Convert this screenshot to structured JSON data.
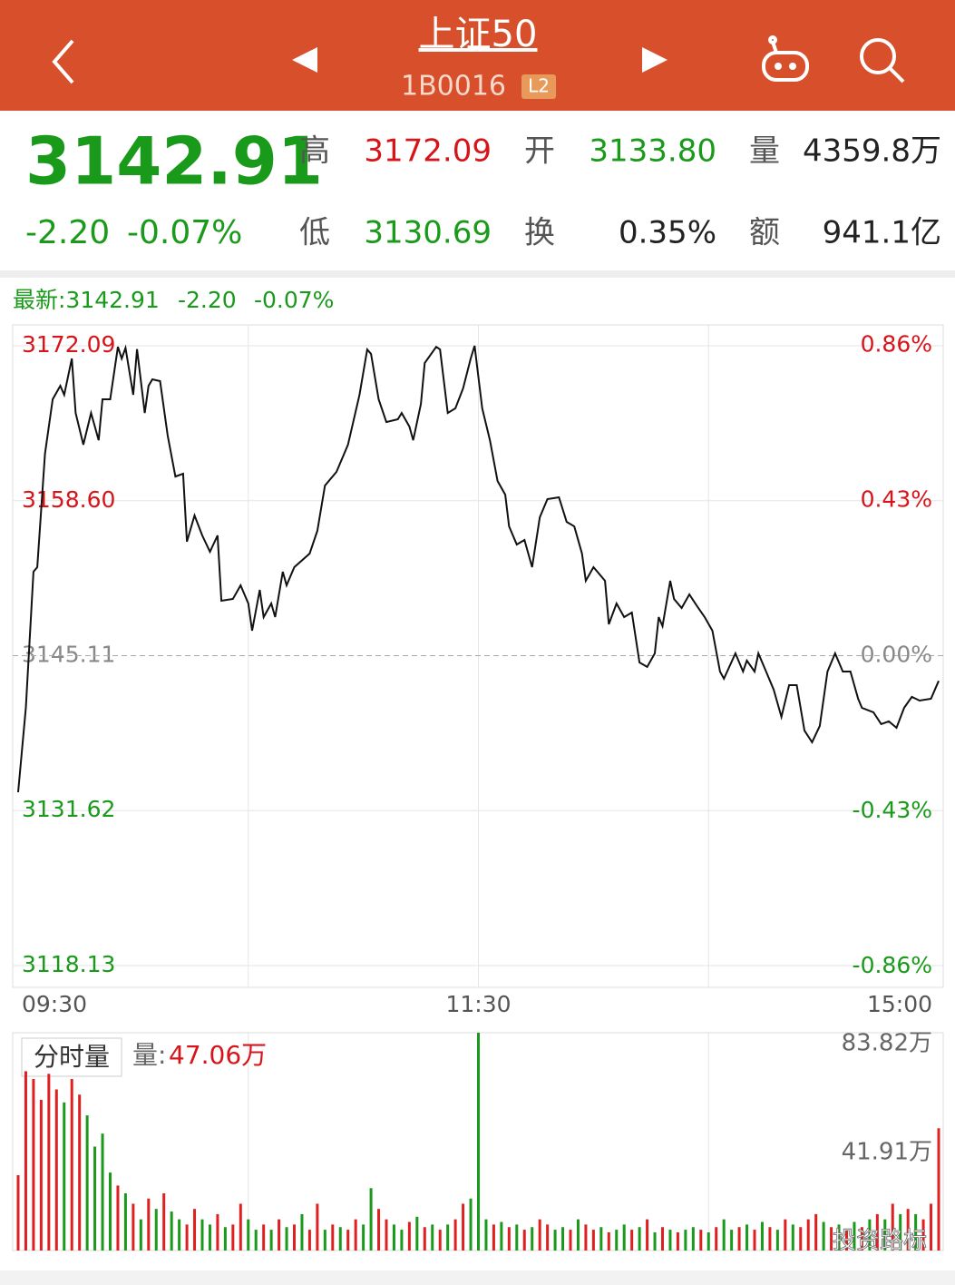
{
  "header": {
    "title": "上证50",
    "code": "1B0016",
    "badge": "L2"
  },
  "quote": {
    "price": "3142.91",
    "change": "-2.20",
    "change_pct": "-0.07%",
    "color": "#1a9a1a",
    "fields": [
      {
        "label": "高",
        "value": "3172.09",
        "color": "#d7141a"
      },
      {
        "label": "开",
        "value": "3133.80",
        "color": "#1a9a1a"
      },
      {
        "label": "量",
        "value": "4359.8万",
        "color": "#222222"
      },
      {
        "label": "低",
        "value": "3130.69",
        "color": "#1a9a1a"
      },
      {
        "label": "换",
        "value": "0.35%",
        "color": "#222222"
      },
      {
        "label": "额",
        "value": "941.1亿",
        "color": "#222222"
      }
    ]
  },
  "chart_data": [
    {
      "type": "line",
      "latest": {
        "label": "最新:3142.91",
        "change": "-2.20",
        "change_pct": "-0.07%"
      },
      "x": [
        0,
        2,
        4,
        5,
        7,
        9,
        11,
        12,
        14,
        15,
        17,
        19,
        21,
        22,
        24,
        26,
        27,
        28,
        30,
        31,
        33,
        34,
        35,
        37,
        39,
        41,
        43,
        44,
        46,
        48,
        50,
        52,
        53,
        56,
        58,
        60,
        61,
        63,
        64,
        66,
        67,
        69,
        70,
        72,
        76,
        78,
        80,
        83,
        86,
        89,
        91,
        92,
        94,
        96,
        99,
        100,
        102,
        103,
        105,
        106,
        109,
        110,
        112,
        114,
        116,
        118,
        119,
        121,
        123,
        125,
        127,
        128,
        130,
        132,
        134,
        136,
        138,
        141,
        143,
        145,
        147,
        148,
        150,
        153,
        154,
        156,
        158,
        160,
        162,
        164,
        166,
        167,
        168,
        170,
        171,
        173,
        175,
        177,
        179,
        181,
        183,
        184,
        187,
        189,
        190,
        192,
        193,
        195,
        197,
        199,
        201,
        203,
        205,
        207,
        209,
        211,
        213,
        215,
        217,
        219,
        220,
        223,
        225,
        227,
        229,
        231,
        233,
        235,
        238,
        240
      ],
      "values": [
        3133.22,
        3140.57,
        3152.42,
        3152.81,
        3162.69,
        3167.43,
        3168.61,
        3167.82,
        3170.98,
        3166.24,
        3163.48,
        3166.24,
        3163.87,
        3167.43,
        3167.43,
        3172.0,
        3170.98,
        3171.9,
        3167.82,
        3171.8,
        3166.24,
        3168.61,
        3169.17,
        3169.01,
        3164.27,
        3160.71,
        3160.95,
        3155.03,
        3157.32,
        3155.58,
        3154.16,
        3155.58,
        3149.89,
        3150.05,
        3151.23,
        3149.65,
        3147.28,
        3150.84,
        3148.47,
        3149.65,
        3148.47,
        3152.42,
        3151.23,
        3152.81,
        3154.0,
        3155.97,
        3159.92,
        3161.11,
        3163.48,
        3167.82,
        3171.77,
        3171.38,
        3167.43,
        3165.45,
        3165.69,
        3166.24,
        3165.06,
        3163.87,
        3167.03,
        3170.59,
        3172.0,
        3171.77,
        3166.24,
        3166.64,
        3168.38,
        3170.98,
        3172.09,
        3166.64,
        3163.87,
        3160.32,
        3159.13,
        3156.37,
        3154.79,
        3155.18,
        3152.81,
        3157.16,
        3158.74,
        3158.9,
        3156.76,
        3156.37,
        3154.0,
        3151.63,
        3152.81,
        3151.63,
        3147.84,
        3149.65,
        3148.47,
        3148.86,
        3144.52,
        3144.13,
        3145.31,
        3148.47,
        3147.68,
        3151.63,
        3150.05,
        3149.26,
        3150.44,
        3149.42,
        3148.47,
        3147.28,
        3143.73,
        3143.1,
        3145.31,
        3143.73,
        3144.68,
        3143.73,
        3145.31,
        3143.73,
        3142.15,
        3139.78,
        3142.54,
        3142.54,
        3138.59,
        3137.57,
        3138.99,
        3143.73,
        3145.31,
        3143.73,
        3143.73,
        3141.36,
        3140.57,
        3140.17,
        3139.15,
        3139.39,
        3138.83,
        3140.57,
        3141.52,
        3141.2,
        3141.36,
        3142.91
      ],
      "color": "#111111",
      "xlim": [
        0,
        240
      ],
      "xticks": [
        {
          "value": 0,
          "label": "09:30"
        },
        {
          "value": 120,
          "label": "11:30"
        },
        {
          "value": 240,
          "label": "15:00"
        }
      ],
      "xgrid": [
        60,
        120,
        180
      ],
      "ylim": [
        3116.23,
        3173.91
      ],
      "yticks": [
        {
          "value": 3172.09,
          "label": "3172.09"
        },
        {
          "value": 3158.6,
          "label": "3158.60"
        },
        3145.11,
        3131.62,
        3118.13
      ],
      "y2lim": [
        -0.918,
        0.916
      ],
      "y2ticks": [
        {
          "value": 0.86,
          "label": "0.86%"
        },
        {
          "value": 0.43,
          "label": "0.43%"
        },
        {
          "value": 0,
          "label": "0.00%"
        },
        {
          "value": -0.43,
          "label": "-0.43%"
        },
        {
          "value": -0.86,
          "label": "-0.86%"
        }
      ],
      "reference": 3145.11,
      "up_color": "#d7141a",
      "down_color": "#1a9a1a",
      "flat_color": "#888888",
      "grid": true
    },
    {
      "type": "bar",
      "button": "分时量",
      "label": "量:",
      "label_value": "47.06万",
      "x": [
        0,
        2,
        4,
        6,
        8,
        10,
        12,
        14,
        16,
        18,
        20,
        22,
        24,
        26,
        28,
        30,
        32,
        34,
        36,
        38,
        40,
        42,
        44,
        46,
        48,
        50,
        52,
        54,
        56,
        58,
        60,
        62,
        64,
        66,
        68,
        70,
        72,
        74,
        76,
        78,
        80,
        82,
        84,
        86,
        88,
        90,
        92,
        94,
        96,
        98,
        100,
        102,
        104,
        106,
        108,
        110,
        112,
        114,
        116,
        118,
        120,
        122,
        124,
        126,
        128,
        130,
        132,
        134,
        136,
        138,
        140,
        142,
        144,
        146,
        148,
        150,
        152,
        154,
        156,
        158,
        160,
        162,
        164,
        166,
        168,
        170,
        172,
        174,
        176,
        178,
        180,
        182,
        184,
        186,
        188,
        190,
        192,
        194,
        196,
        198,
        200,
        202,
        204,
        206,
        208,
        210,
        212,
        214,
        216,
        218,
        220,
        222,
        224,
        226,
        228,
        230,
        232,
        234,
        236,
        238,
        240
      ],
      "values": [
        29,
        69,
        66,
        58,
        68,
        62,
        57,
        66,
        60,
        52,
        40,
        45,
        30,
        25,
        22,
        18,
        12,
        20,
        16,
        22,
        15,
        12,
        10,
        16,
        12,
        10,
        14,
        9,
        10,
        18,
        12,
        8,
        10,
        8,
        12,
        9,
        10,
        14,
        8,
        18,
        8,
        10,
        9,
        8,
        12,
        10,
        24,
        16,
        12,
        10,
        8,
        11,
        13,
        9,
        10,
        8,
        10,
        12,
        18,
        20,
        83.82,
        12,
        10,
        11,
        9,
        10,
        8,
        9,
        12,
        10,
        8,
        9,
        8,
        12,
        10,
        8,
        9,
        7,
        8,
        10,
        8,
        9,
        12,
        7,
        9,
        8,
        7,
        8,
        9,
        8,
        7,
        9,
        12,
        8,
        9,
        10,
        8,
        11,
        9,
        8,
        12,
        10,
        9,
        12,
        14,
        11,
        9,
        10,
        8,
        11,
        9,
        12,
        14,
        12,
        18,
        14,
        16,
        14,
        12,
        18,
        47.06
      ],
      "colors": [
        "#e02020",
        "#e02020",
        "#e02020",
        "#e02020",
        "#e02020",
        "#e02020",
        "#1a9a1a",
        "#e02020",
        "#e02020",
        "#1a9a1a",
        "#1a9a1a",
        "#1a9a1a",
        "#1a9a1a",
        "#e02020",
        "#1a9a1a",
        "#e02020",
        "#1a9a1a",
        "#e02020",
        "#1a9a1a",
        "#e02020",
        "#1a9a1a",
        "#1a9a1a",
        "#e02020",
        "#e02020",
        "#1a9a1a",
        "#1a9a1a",
        "#e02020",
        "#1a9a1a",
        "#e02020",
        "#e02020",
        "#1a9a1a",
        "#1a9a1a",
        "#e02020",
        "#1a9a1a",
        "#e02020",
        "#1a9a1a",
        "#e02020",
        "#1a9a1a",
        "#e02020",
        "#e02020",
        "#1a9a1a",
        "#e02020",
        "#1a9a1a",
        "#e02020",
        "#e02020",
        "#1a9a1a",
        "#1a9a1a",
        "#e02020",
        "#e02020",
        "#1a9a1a",
        "#1a9a1a",
        "#e02020",
        "#1a9a1a",
        "#e02020",
        "#1a9a1a",
        "#e02020",
        "#1a9a1a",
        "#e02020",
        "#e02020",
        "#1a9a1a",
        "#1a9a1a",
        "#1a9a1a",
        "#e02020",
        "#1a9a1a",
        "#e02020",
        "#1a9a1a",
        "#e02020",
        "#1a9a1a",
        "#e02020",
        "#e02020",
        "#1a9a1a",
        "#1a9a1a",
        "#e02020",
        "#1a9a1a",
        "#e02020",
        "#e02020",
        "#1a9a1a",
        "#e02020",
        "#1a9a1a",
        "#1a9a1a",
        "#e02020",
        "#1a9a1a",
        "#e02020",
        "#1a9a1a",
        "#e02020",
        "#1a9a1a",
        "#e02020",
        "#1a9a1a",
        "#1a9a1a",
        "#e02020",
        "#1a9a1a",
        "#e02020",
        "#1a9a1a",
        "#1a9a1a",
        "#e02020",
        "#1a9a1a",
        "#e02020",
        "#1a9a1a",
        "#e02020",
        "#1a9a1a",
        "#e02020",
        "#1a9a1a",
        "#e02020",
        "#e02020",
        "#e02020",
        "#1a9a1a",
        "#e02020",
        "#1a9a1a",
        "#e02020",
        "#1a9a1a",
        "#e02020",
        "#1a9a1a",
        "#e02020",
        "#1a9a1a",
        "#e02020",
        "#1a9a1a",
        "#e02020",
        "#1a9a1a",
        "#e02020",
        "#e02020",
        "#e02020"
      ],
      "xlim": [
        0,
        240
      ],
      "ylim": [
        0,
        83.82
      ],
      "yticks": [
        {
          "value": 83.82,
          "label": "83.82万"
        },
        {
          "value": 41.91,
          "label": "41.91万"
        }
      ],
      "xgrid": [
        60,
        120,
        180
      ]
    }
  ],
  "watermark": "投资路标"
}
